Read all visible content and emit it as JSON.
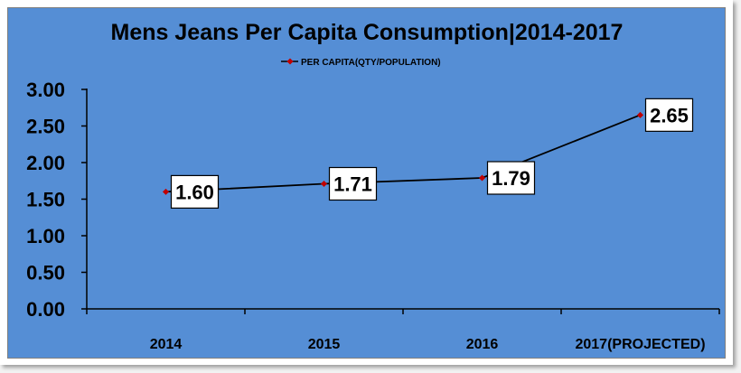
{
  "colors": {
    "plot_background": "#558ed5",
    "series_line": "#000000",
    "series_marker": "#c00000",
    "label_box": "#ffffff"
  },
  "chart_data": {
    "type": "line",
    "title": "Mens Jeans Per Capita Consumption|2014-2017",
    "categories": [
      "2014",
      "2015",
      "2016",
      "2017(PROJECTED)"
    ],
    "series": [
      {
        "name": "PER CAPITA(QTY/POPULATION)",
        "values": [
          1.6,
          1.71,
          1.79,
          2.65
        ],
        "labels": [
          "1.60",
          "1.71",
          "1.79",
          "2.65"
        ]
      }
    ],
    "y_ticks": [
      "0.00",
      "0.50",
      "1.00",
      "1.50",
      "2.00",
      "2.50",
      "3.00"
    ],
    "ylim": [
      0,
      3
    ],
    "legend_position": "top",
    "grid": false
  }
}
